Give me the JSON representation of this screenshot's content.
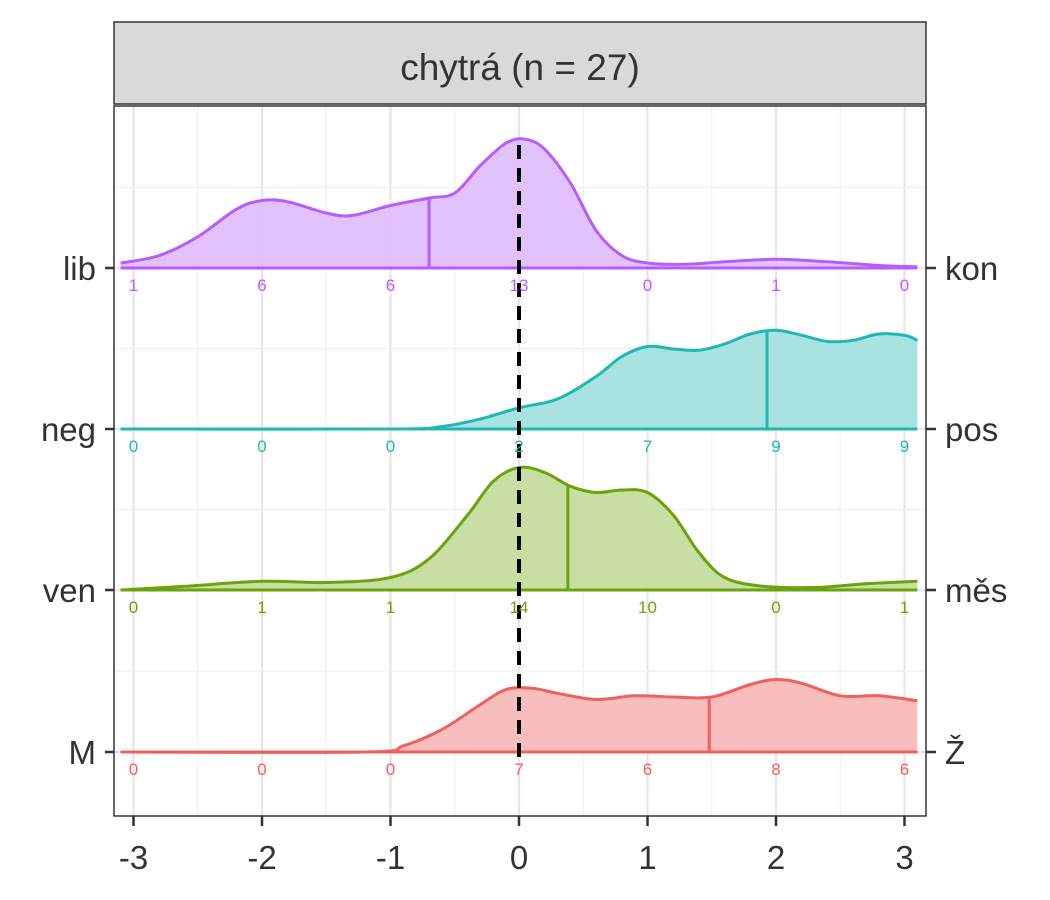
{
  "chart_data": {
    "type": "ridgeline",
    "title": "chytrá (n = 27)",
    "xlim": [
      -3.1,
      3.1
    ],
    "x_ticks": [
      "-3",
      "-2",
      "-1",
      "0",
      "1",
      "2",
      "3"
    ],
    "count_positions": [
      -3,
      -2,
      -1,
      0,
      1,
      2,
      3
    ],
    "reference_line_x": 0,
    "grid": true,
    "series": [
      {
        "left_label": "lib",
        "right_label": "kon",
        "color": "#B75CFF",
        "fill": "#E0BEFF",
        "mean_x": -0.7,
        "counts": [
          1,
          6,
          6,
          13,
          0,
          1,
          0
        ],
        "curve": [
          [
            -3.1,
            0.04
          ],
          [
            -2.8,
            0.1
          ],
          [
            -2.5,
            0.25
          ],
          [
            -2.2,
            0.47
          ],
          [
            -2.0,
            0.54
          ],
          [
            -1.8,
            0.53
          ],
          [
            -1.5,
            0.44
          ],
          [
            -1.3,
            0.42
          ],
          [
            -1.0,
            0.5
          ],
          [
            -0.7,
            0.56
          ],
          [
            -0.5,
            0.6
          ],
          [
            -0.3,
            0.82
          ],
          [
            -0.1,
            1.0
          ],
          [
            0.05,
            1.03
          ],
          [
            0.2,
            0.95
          ],
          [
            0.4,
            0.68
          ],
          [
            0.6,
            0.3
          ],
          [
            0.8,
            0.1
          ],
          [
            1.0,
            0.04
          ],
          [
            1.3,
            0.03
          ],
          [
            1.6,
            0.05
          ],
          [
            2.0,
            0.07
          ],
          [
            2.4,
            0.05
          ],
          [
            2.8,
            0.02
          ],
          [
            3.1,
            0.01
          ]
        ]
      },
      {
        "left_label": "neg",
        "right_label": "pos",
        "color": "#1FB8B5",
        "fill": "#A3E1E0",
        "mean_x": 1.93,
        "counts": [
          0,
          0,
          0,
          2,
          7,
          9,
          9
        ],
        "curve": [
          [
            -3.1,
            0.0
          ],
          [
            -1.0,
            0.0
          ],
          [
            -0.6,
            0.02
          ],
          [
            -0.3,
            0.08
          ],
          [
            0.0,
            0.17
          ],
          [
            0.3,
            0.24
          ],
          [
            0.6,
            0.42
          ],
          [
            0.8,
            0.58
          ],
          [
            1.0,
            0.66
          ],
          [
            1.2,
            0.64
          ],
          [
            1.4,
            0.63
          ],
          [
            1.6,
            0.68
          ],
          [
            1.8,
            0.76
          ],
          [
            2.0,
            0.79
          ],
          [
            2.2,
            0.75
          ],
          [
            2.4,
            0.7
          ],
          [
            2.6,
            0.71
          ],
          [
            2.8,
            0.76
          ],
          [
            3.0,
            0.75
          ],
          [
            3.1,
            0.71
          ]
        ]
      },
      {
        "left_label": "ven",
        "right_label": "měs",
        "color": "#6BA30D",
        "fill": "#C6DC9D",
        "mean_x": 0.38,
        "counts": [
          0,
          1,
          1,
          14,
          10,
          0,
          1
        ],
        "curve": [
          [
            -3.1,
            0.0
          ],
          [
            -2.6,
            0.03
          ],
          [
            -2.0,
            0.07
          ],
          [
            -1.5,
            0.06
          ],
          [
            -1.0,
            0.1
          ],
          [
            -0.7,
            0.25
          ],
          [
            -0.4,
            0.6
          ],
          [
            -0.2,
            0.87
          ],
          [
            0.0,
            0.98
          ],
          [
            0.2,
            0.94
          ],
          [
            0.4,
            0.83
          ],
          [
            0.6,
            0.78
          ],
          [
            0.8,
            0.8
          ],
          [
            1.0,
            0.78
          ],
          [
            1.2,
            0.6
          ],
          [
            1.4,
            0.3
          ],
          [
            1.6,
            0.1
          ],
          [
            1.9,
            0.03
          ],
          [
            2.3,
            0.02
          ],
          [
            2.7,
            0.05
          ],
          [
            3.1,
            0.07
          ]
        ]
      },
      {
        "left_label": "M",
        "right_label": "Ž",
        "color": "#F0605E",
        "fill": "#F8BAB9",
        "mean_x": 1.48,
        "counts": [
          0,
          0,
          0,
          7,
          6,
          8,
          6
        ],
        "curve": [
          [
            -3.1,
            0.0
          ],
          [
            -1.2,
            0.0
          ],
          [
            -0.9,
            0.05
          ],
          [
            -0.6,
            0.18
          ],
          [
            -0.3,
            0.38
          ],
          [
            -0.1,
            0.5
          ],
          [
            0.1,
            0.51
          ],
          [
            0.3,
            0.47
          ],
          [
            0.6,
            0.42
          ],
          [
            0.9,
            0.45
          ],
          [
            1.2,
            0.44
          ],
          [
            1.5,
            0.44
          ],
          [
            1.8,
            0.54
          ],
          [
            2.0,
            0.58
          ],
          [
            2.2,
            0.55
          ],
          [
            2.5,
            0.45
          ],
          [
            2.8,
            0.45
          ],
          [
            3.1,
            0.41
          ]
        ]
      }
    ]
  }
}
